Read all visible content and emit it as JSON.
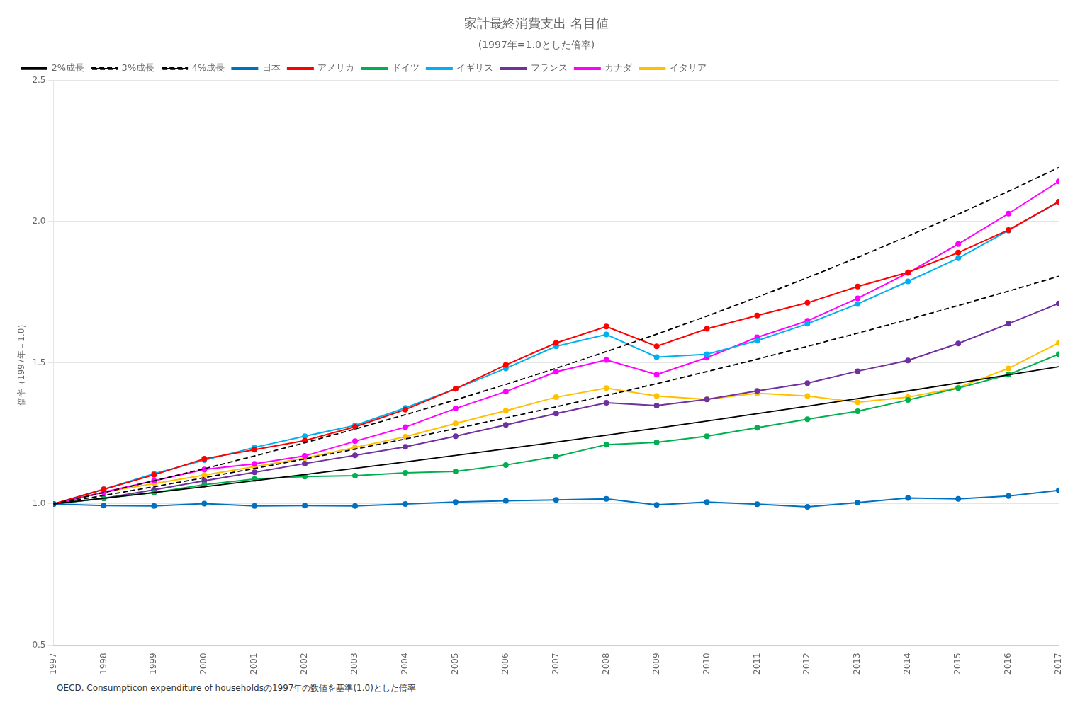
{
  "chart_data": {
    "type": "line",
    "title": "家計最終消費支出 名目値",
    "subtitle": "(1997年=1.0とした倍率)",
    "ylabel": "倍率（1997年＝1.0）",
    "footnote": "OECD. Consumpticon expenditure of householdsの1997年の数値を基準(1.0)とした倍率",
    "x": [
      1997,
      1998,
      1999,
      2000,
      2001,
      2002,
      2003,
      2004,
      2005,
      2006,
      2007,
      2008,
      2009,
      2010,
      2011,
      2012,
      2013,
      2014,
      2015,
      2016,
      2017
    ],
    "xlim": [
      1997,
      2017
    ],
    "xticks": [
      1997,
      1998,
      1999,
      2000,
      2001,
      2002,
      2003,
      2004,
      2005,
      2006,
      2007,
      2008,
      2009,
      2010,
      2011,
      2012,
      2013,
      2014,
      2015,
      2016,
      2017
    ],
    "ylim": [
      0.5,
      2.5
    ],
    "yticks": [
      0.5,
      {
        "value": 1,
        "label": "1.0"
      },
      1.5,
      {
        "value": 2,
        "label": "2.0"
      },
      2.5
    ],
    "grid": "y",
    "legend": "upper left",
    "series": [
      {
        "name": "2%成長",
        "color": "#000000",
        "line_style": "solid",
        "marker": "none",
        "values": [
          1.0,
          1.02,
          1.0404,
          1.0612,
          1.0824,
          1.1041,
          1.1262,
          1.1487,
          1.1717,
          1.1951,
          1.219,
          1.2434,
          1.2683,
          1.2936,
          1.3195,
          1.3459,
          1.3728,
          1.4002,
          1.4282,
          1.4568,
          1.4859
        ]
      },
      {
        "name": "3%成長",
        "color": "#000000",
        "line_style": "dashed",
        "marker": "none",
        "values": [
          1.0,
          1.03,
          1.0609,
          1.0927,
          1.1255,
          1.1593,
          1.1941,
          1.2299,
          1.2668,
          1.3048,
          1.3439,
          1.3842,
          1.4258,
          1.4685,
          1.5126,
          1.558,
          1.6047,
          1.6528,
          1.7024,
          1.7535,
          1.8061
        ]
      },
      {
        "name": "4%成長",
        "color": "#000000",
        "line_style": "dashed",
        "marker": "none",
        "values": [
          1.0,
          1.04,
          1.0816,
          1.1249,
          1.1699,
          1.2167,
          1.2653,
          1.3159,
          1.3686,
          1.4233,
          1.4802,
          1.5395,
          1.601,
          1.6651,
          1.7317,
          1.801,
          1.873,
          1.9479,
          2.0258,
          2.1068,
          2.1911
        ]
      },
      {
        "name": "日本",
        "color": "#0070c0",
        "line_style": "solid",
        "marker": "circle",
        "values": [
          1.0,
          0.994,
          0.993,
          1.001,
          0.993,
          0.994,
          0.993,
          1.0,
          1.007,
          1.011,
          1.014,
          1.018,
          0.997,
          1.007,
          0.999,
          0.99,
          1.005,
          1.021,
          1.018,
          1.028,
          1.048
        ]
      },
      {
        "name": "アメリカ",
        "color": "#ff0000",
        "line_style": "solid",
        "marker": "circle",
        "values": [
          1.0,
          1.052,
          1.103,
          1.16,
          1.192,
          1.224,
          1.273,
          1.334,
          1.408,
          1.492,
          1.57,
          1.628,
          1.558,
          1.62,
          1.667,
          1.712,
          1.77,
          1.82,
          1.89,
          1.97,
          2.07
        ]
      },
      {
        "name": "ドイツ",
        "color": "#00b050",
        "line_style": "solid",
        "marker": "circle",
        "values": [
          1.0,
          1.02,
          1.04,
          1.068,
          1.088,
          1.097,
          1.1,
          1.11,
          1.115,
          1.138,
          1.168,
          1.21,
          1.218,
          1.24,
          1.27,
          1.3,
          1.328,
          1.368,
          1.41,
          1.458,
          1.53
        ]
      },
      {
        "name": "イギリス",
        "color": "#00b0f0",
        "line_style": "solid",
        "marker": "circle",
        "values": [
          1.0,
          1.052,
          1.107,
          1.155,
          1.2,
          1.24,
          1.278,
          1.34,
          1.408,
          1.48,
          1.558,
          1.6,
          1.52,
          1.53,
          1.578,
          1.638,
          1.708,
          1.788,
          1.87,
          1.968,
          2.07
        ]
      },
      {
        "name": "フランス",
        "color": "#7030a0",
        "line_style": "solid",
        "marker": "circle",
        "values": [
          1.0,
          1.02,
          1.05,
          1.082,
          1.112,
          1.143,
          1.172,
          1.202,
          1.24,
          1.28,
          1.32,
          1.358,
          1.348,
          1.37,
          1.4,
          1.428,
          1.47,
          1.508,
          1.568,
          1.638,
          1.71
        ]
      },
      {
        "name": "カナダ",
        "color": "#ff00ff",
        "line_style": "solid",
        "marker": "circle",
        "values": [
          1.0,
          1.042,
          1.082,
          1.122,
          1.142,
          1.17,
          1.222,
          1.272,
          1.338,
          1.398,
          1.468,
          1.51,
          1.458,
          1.518,
          1.59,
          1.648,
          1.728,
          1.818,
          1.92,
          2.028,
          2.142
        ]
      },
      {
        "name": "イタリア",
        "color": "#ffc000",
        "line_style": "solid",
        "marker": "circle",
        "values": [
          1.0,
          1.042,
          1.072,
          1.102,
          1.132,
          1.162,
          1.2,
          1.238,
          1.285,
          1.33,
          1.378,
          1.41,
          1.382,
          1.37,
          1.392,
          1.382,
          1.36,
          1.378,
          1.412,
          1.48,
          1.57
        ]
      }
    ]
  }
}
